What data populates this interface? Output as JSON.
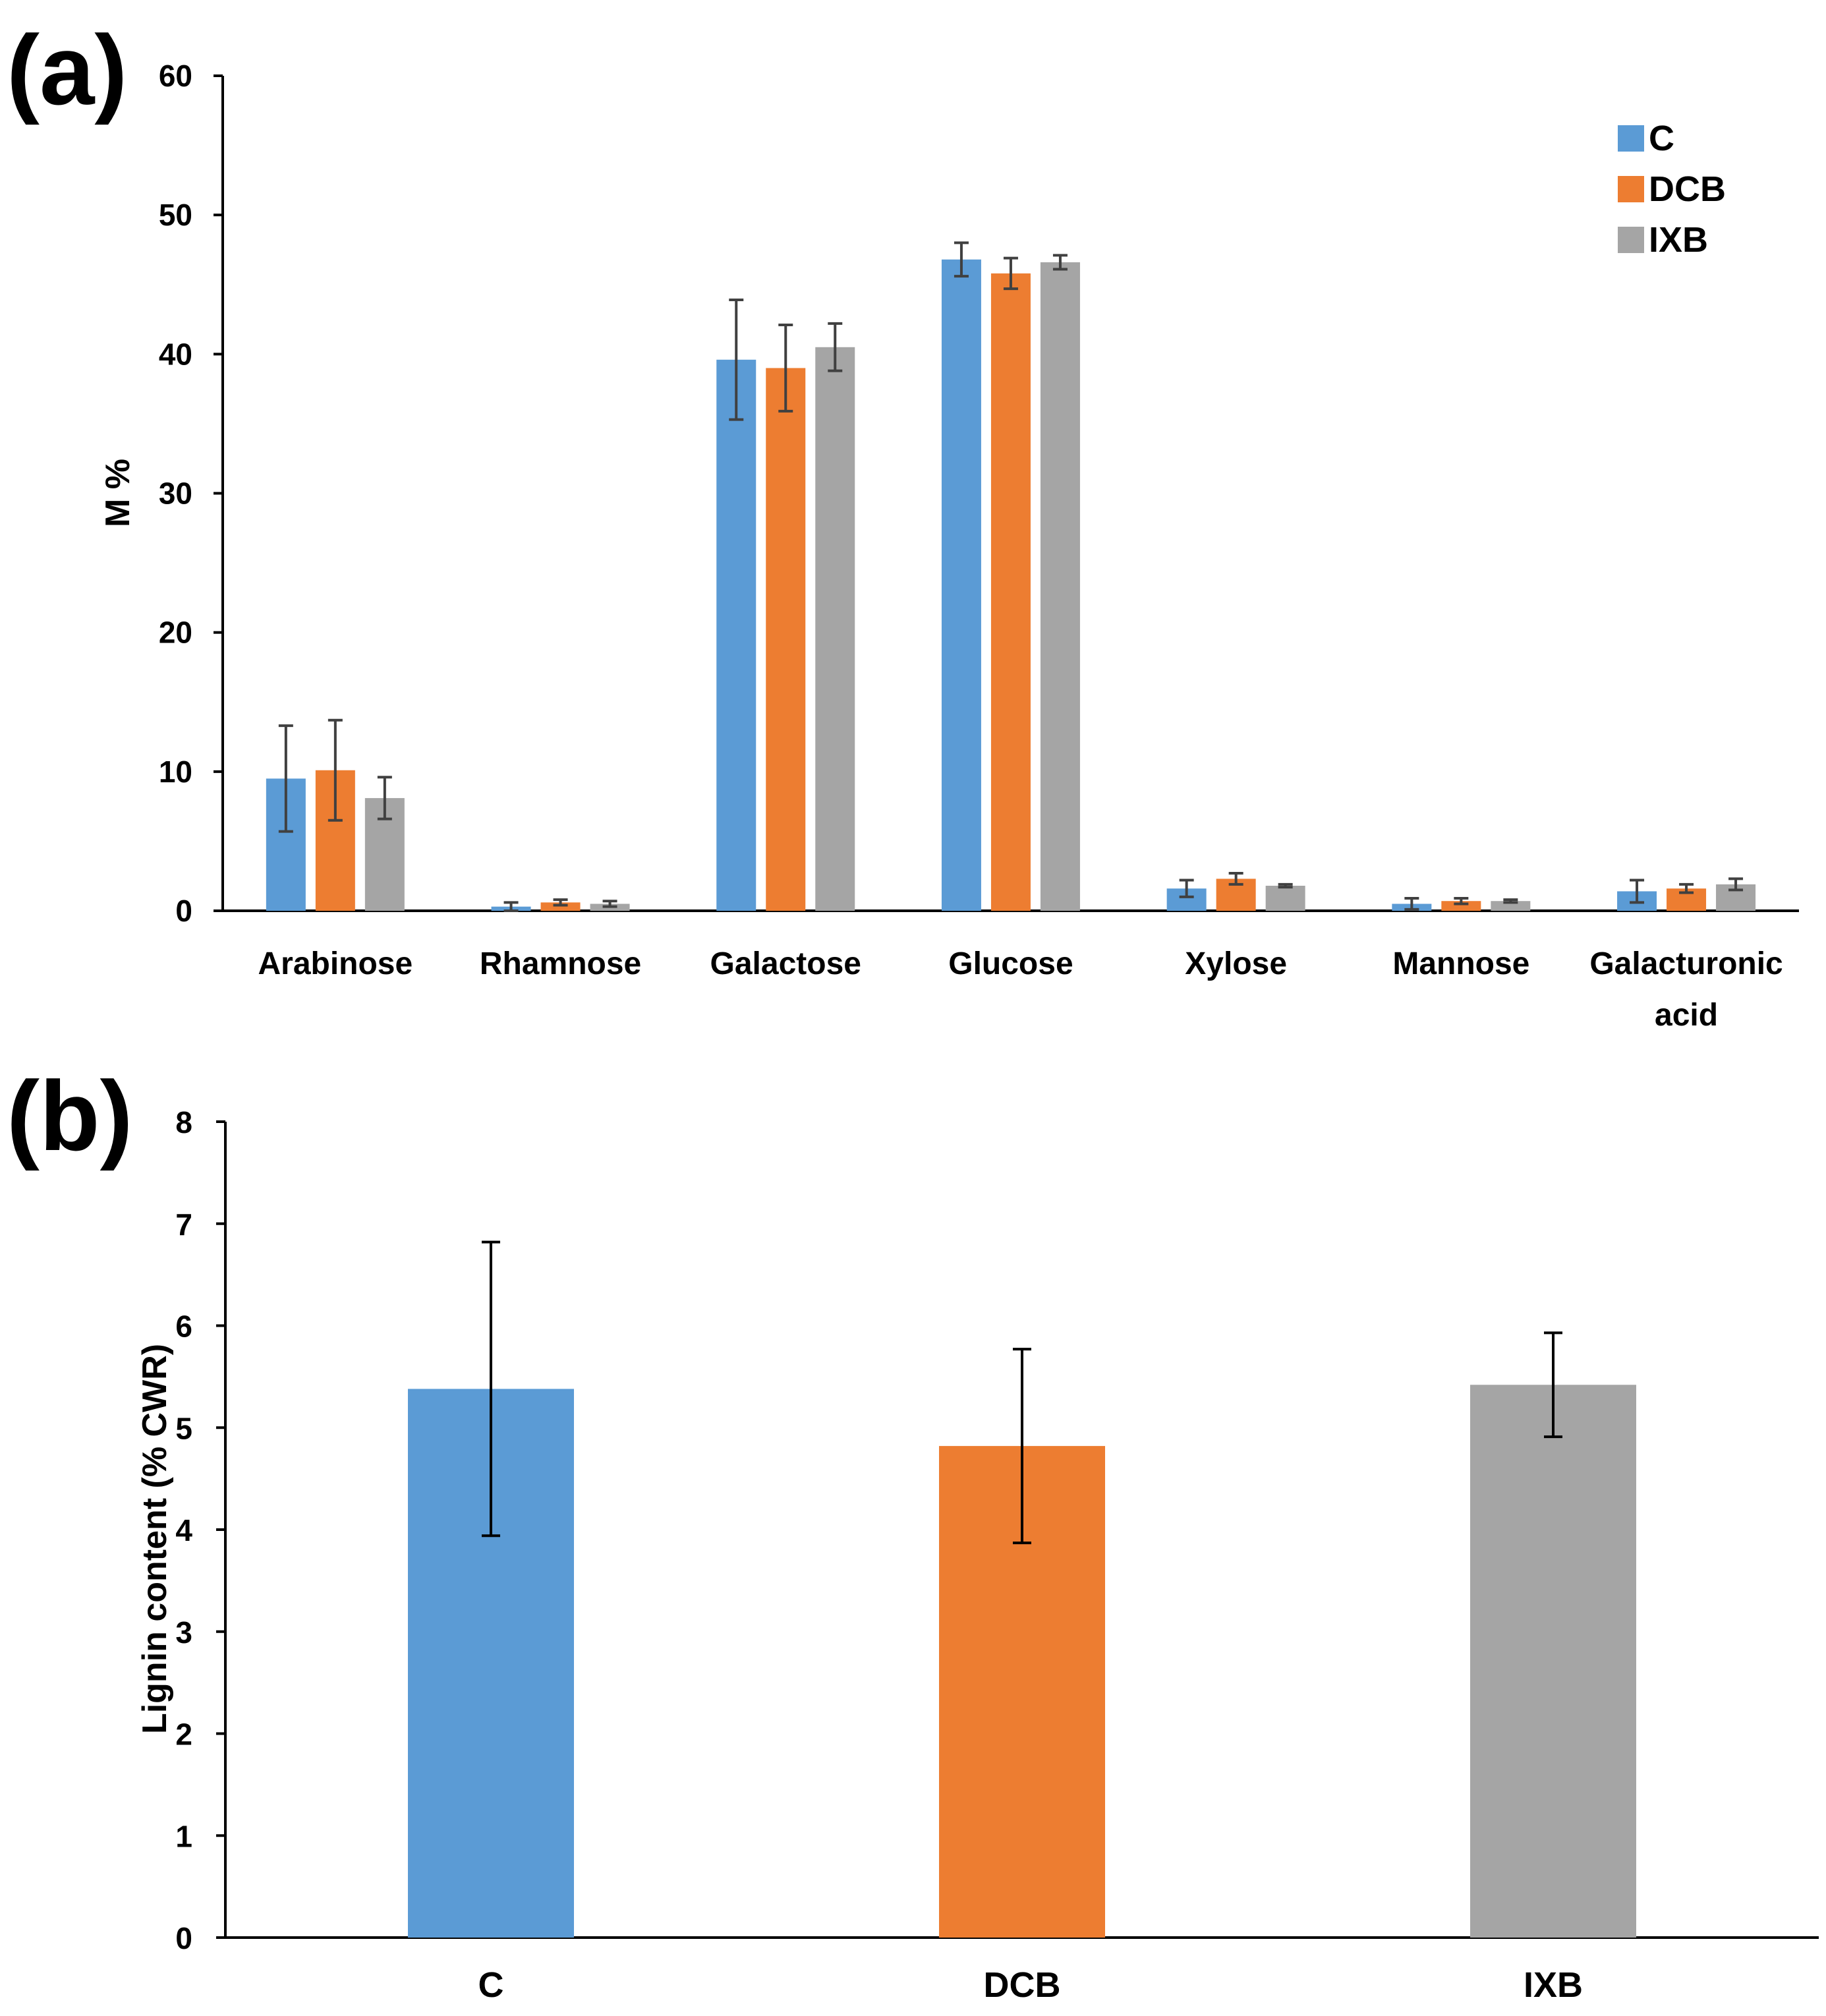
{
  "colors": {
    "C": "#5b9bd5",
    "DCB": "#ed7d31",
    "IXB": "#a5a5a5",
    "axis": "#000000",
    "error_bar_a": "#404040",
    "error_bar_b": "#000000"
  },
  "chart_data": [
    {
      "panel": "(a)",
      "type": "bar",
      "title": "",
      "xlabel": "",
      "ylabel": "M %",
      "ylim": [
        0,
        60
      ],
      "yticks": [
        0,
        10,
        20,
        30,
        40,
        50,
        60
      ],
      "grid": false,
      "legend_position": "top-right",
      "categories": [
        "Arabinose",
        "Rhamnose",
        "Galactose",
        "Glucose",
        "Xylose",
        "Mannose",
        "Galacturonic acid"
      ],
      "category_lines": [
        [
          "Arabinose"
        ],
        [
          "Rhamnose"
        ],
        [
          "Galactose"
        ],
        [
          "Glucose"
        ],
        [
          "Xylose"
        ],
        [
          "Mannose"
        ],
        [
          "Galacturonic",
          "acid"
        ]
      ],
      "series": [
        {
          "name": "C",
          "values": [
            9.5,
            0.3,
            39.6,
            46.8,
            1.6,
            0.5,
            1.4
          ],
          "errors": [
            3.8,
            0.3,
            4.3,
            1.2,
            0.6,
            0.4,
            0.8
          ]
        },
        {
          "name": "DCB",
          "values": [
            10.1,
            0.6,
            39.0,
            45.8,
            2.3,
            0.7,
            1.6
          ],
          "errors": [
            3.6,
            0.2,
            3.1,
            1.1,
            0.4,
            0.2,
            0.3
          ]
        },
        {
          "name": "IXB",
          "values": [
            8.1,
            0.5,
            40.5,
            46.6,
            1.8,
            0.7,
            1.9
          ],
          "errors": [
            1.5,
            0.2,
            1.7,
            0.5,
            0.1,
            0.1,
            0.4
          ]
        }
      ]
    },
    {
      "panel": "(b)",
      "type": "bar",
      "title": "",
      "xlabel": "",
      "ylabel": "Lignin content (% CWR)",
      "ylim": [
        0,
        8
      ],
      "yticks": [
        0,
        1,
        2,
        3,
        4,
        5,
        6,
        7,
        8
      ],
      "grid": false,
      "categories": [
        "C",
        "DCB",
        "IXB"
      ],
      "values": [
        5.38,
        4.82,
        5.42
      ],
      "errors": [
        1.44,
        0.95,
        0.51
      ]
    }
  ]
}
